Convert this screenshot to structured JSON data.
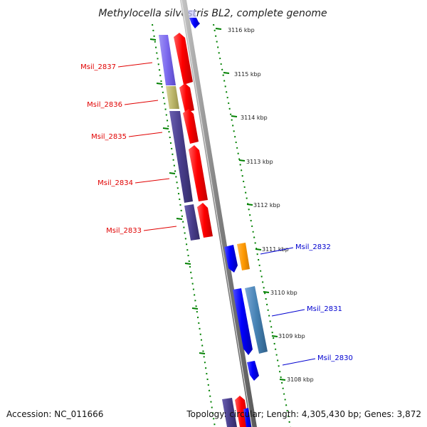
{
  "title": "Methylocella silvestris BL2, complete genome",
  "footer": {
    "accession": "Accession: NC_011666",
    "summary": "Topology: circular; Length: 4,305,430 bp; Genes: 3,872"
  },
  "scale_labels": [
    "3116 kbp",
    "3115 kbp",
    "3114 kbp",
    "3113 kbp",
    "3112 kbp",
    "3111 kbp",
    "3110 kbp",
    "3109 kbp",
    "3108 kbp"
  ],
  "genes": {
    "left": [
      "Msil_2837",
      "Msil_2836",
      "Msil_2835",
      "Msil_2834",
      "Msil_2833"
    ],
    "right": [
      "Msil_2832",
      "Msil_2831",
      "Msil_2830"
    ]
  },
  "colors": {
    "cds_forward": "#ff0000",
    "cds_reverse": "#0000ff",
    "label_left": "#e00000",
    "label_right": "#0000d0",
    "tick": "#008000",
    "backbone": "#808080",
    "orange_block": "#ff9900",
    "steel_block": "#4682b4",
    "olive_block": "#bdb76b",
    "slate_block": "#483d8b",
    "lavender_block": "#7b68ee"
  }
}
